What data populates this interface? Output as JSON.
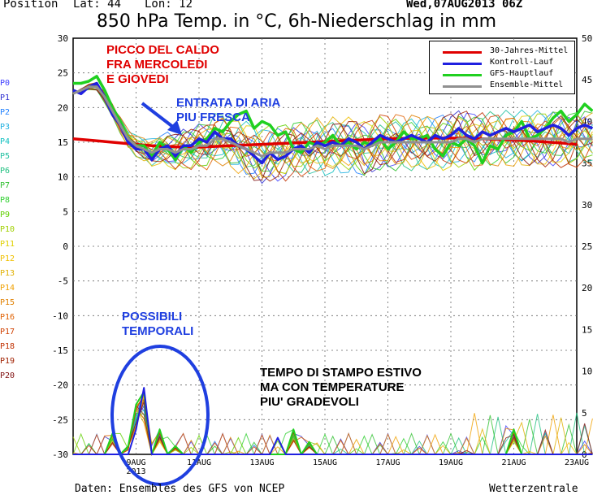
{
  "header": {
    "position": "Position",
    "lat": "Lat: 44",
    "lon": "Lon: 12",
    "date": "Wed,07AUG2013 06Z",
    "title": "850 hPa Temp. in °C, 6h-Niederschlag in mm"
  },
  "footer": {
    "source": "Daten: Ensembles des GFS von NCEP",
    "brand": "Wetterzentrale"
  },
  "members": [
    "P0",
    "P1",
    "P2",
    "P3",
    "P4",
    "P5",
    "P6",
    "P7",
    "P8",
    "P9",
    "P10",
    "P11",
    "P12",
    "P13",
    "P14",
    "P15",
    "P16",
    "P17",
    "P18",
    "P19",
    "P20"
  ],
  "member_colors": [
    "#4040ff",
    "#3030d0",
    "#2080ff",
    "#20b0e0",
    "#10c0c0",
    "#20c0a0",
    "#20c080",
    "#30c030",
    "#30d030",
    "#60d000",
    "#a0d000",
    "#e0d000",
    "#f0c000",
    "#e0b000",
    "#f0a000",
    "#e08000",
    "#e06000",
    "#d04000",
    "#c03000",
    "#a02000",
    "#801010"
  ],
  "legend": [
    {
      "label": "30-Jahres-Mittel",
      "color": "#e00000"
    },
    {
      "label": "Kontroll-Lauf",
      "color": "#2020e0"
    },
    {
      "label": "GFS-Hauptlauf",
      "color": "#20d020"
    },
    {
      "label": "Ensemble-Mittel",
      "color": "#909090"
    }
  ],
  "annotations": {
    "heat_peak": [
      "PICCO DEL CALDO",
      "FRA MERCOLEDI",
      "E GIOVEDI"
    ],
    "cooler_air": [
      "ENTRATA DI ARIA",
      "PIU FRESCA"
    ],
    "storms": [
      "POSSIBILI",
      "TEMPORALI"
    ],
    "summer": [
      "TEMPO DI STAMPO ESTIVO",
      "MA CON TEMPERATURE",
      "PIU' GRADEVOLI"
    ]
  },
  "colors": {
    "annotation_red": "#e00000",
    "annotation_blue": "#1f3fe0",
    "annotation_black": "#000000"
  },
  "chart_data": {
    "type": "line",
    "title": "850 hPa Temp. in °C, 6h-Niederschlag in mm",
    "x_tick_labels": [
      "9AUG",
      "11AUG",
      "13AUG",
      "15AUG",
      "17AUG",
      "19AUG",
      "21AUG",
      "23AUG"
    ],
    "x_sub_label": "2013",
    "x_range_days": [
      0,
      16
    ],
    "x_tick_days": [
      2,
      4,
      6,
      8,
      10,
      12,
      14,
      16
    ],
    "y_left_label": "°C",
    "y_left_range": [
      -30,
      30
    ],
    "y_left_ticks": [
      30,
      25,
      20,
      15,
      10,
      5,
      0,
      -5,
      -10,
      -15,
      -20,
      -25,
      -30
    ],
    "y_right_range": [
      0,
      50
    ],
    "y_right_ticks": [
      50,
      45,
      40,
      35,
      30,
      25,
      20,
      15,
      10,
      5,
      0
    ],
    "grid": true,
    "series": [
      {
        "name": "30-Jahres-Mittel",
        "color": "#e00000",
        "axis": "left",
        "step_days": 0.5,
        "values": [
          15.5,
          15.3,
          15.1,
          14.9,
          14.7,
          14.5,
          14.4,
          14.3,
          14.3,
          14.4,
          14.5,
          14.6,
          14.7,
          14.8,
          14.9,
          15.0,
          15.1,
          15.2,
          15.3,
          15.4,
          15.5,
          15.55,
          15.6,
          15.6,
          15.6,
          15.55,
          15.5,
          15.4,
          15.3,
          15.2,
          15.05,
          14.9,
          14.7
        ]
      },
      {
        "name": "GFS-Hauptlauf",
        "color": "#20d020",
        "axis": "left",
        "step_days": 0.25,
        "values": [
          23.5,
          23.5,
          23.8,
          24.5,
          22.5,
          20.0,
          18.0,
          15.5,
          14.5,
          14.5,
          13.0,
          15.0,
          14.0,
          12.5,
          14.5,
          13.5,
          15.0,
          15.5,
          17.0,
          16.5,
          18.0,
          19.0,
          19.5,
          17.0,
          18.0,
          17.5,
          16.0,
          16.5,
          14.0,
          13.5,
          15.0,
          14.5,
          15.0,
          16.0,
          14.5,
          15.0,
          14.0,
          15.0,
          14.5,
          15.5,
          14.0,
          15.0,
          16.5,
          15.5,
          15.5,
          16.0,
          14.0,
          13.0,
          15.0,
          14.5,
          15.5,
          14.5,
          12.0,
          14.5,
          14.0,
          16.0,
          16.5,
          18.0,
          15.5,
          16.0,
          17.0,
          18.5,
          19.5,
          18.0,
          19.0,
          20.5,
          19.5
        ]
      },
      {
        "name": "Kontroll-Lauf",
        "color": "#2020e0",
        "axis": "left",
        "step_days": 0.25,
        "values": [
          22.5,
          22.0,
          23.0,
          23.5,
          21.5,
          19.0,
          17.5,
          15.0,
          14.0,
          14.0,
          12.5,
          14.0,
          14.5,
          13.0,
          14.5,
          14.5,
          15.5,
          15.0,
          16.5,
          15.5,
          15.5,
          14.5,
          14.0,
          13.0,
          12.0,
          13.5,
          12.5,
          13.0,
          14.0,
          14.5,
          13.5,
          15.0,
          14.5,
          15.0,
          14.5,
          15.5,
          15.0,
          14.0,
          15.0,
          16.0,
          15.5,
          15.0,
          15.5,
          16.0,
          15.5,
          15.0,
          16.0,
          15.5,
          16.0,
          17.0,
          16.0,
          15.5,
          16.5,
          16.0,
          16.5,
          17.0,
          16.5,
          17.0,
          17.5,
          16.5,
          17.0,
          17.5,
          17.0,
          16.0,
          17.0,
          17.5,
          17.0
        ]
      },
      {
        "name": "Ensemble-Mittel",
        "color": "#909090",
        "axis": "left",
        "step_days": 0.25,
        "values": [
          22.0,
          22.5,
          23.0,
          23.0,
          21.5,
          19.5,
          17.5,
          15.5,
          14.5,
          14.0,
          13.5,
          14.0,
          14.0,
          13.5,
          14.0,
          14.0,
          14.5,
          14.5,
          15.5,
          15.5,
          15.0,
          14.5,
          14.0,
          13.5,
          13.0,
          13.5,
          13.5,
          13.5,
          14.0,
          14.0,
          14.0,
          14.5,
          14.0,
          14.5,
          14.5,
          14.5,
          14.5,
          14.0,
          14.5,
          15.0,
          15.0,
          15.0,
          15.0,
          15.0,
          15.0,
          15.0,
          15.0,
          15.0,
          15.0,
          15.5,
          15.5,
          15.0,
          15.5,
          15.5,
          15.5,
          15.5,
          15.5,
          15.5,
          15.5,
          15.5,
          15.5,
          15.5,
          15.5,
          15.0,
          15.5,
          15.5,
          15.5
        ]
      },
      {
        "name": "GFS-Hauptlauf",
        "color": "#20d020",
        "axis": "right",
        "step_days": 0.25,
        "values": [
          0,
          0,
          0,
          0,
          0,
          2.5,
          0,
          1,
          6,
          7.5,
          0,
          3,
          0,
          1,
          0,
          0,
          0,
          0,
          0,
          0,
          0,
          0,
          0,
          0,
          0,
          0,
          0,
          0,
          3,
          0,
          1.5,
          0,
          0,
          0,
          0,
          0,
          0,
          0,
          0,
          0,
          0,
          0,
          0,
          0,
          0,
          0,
          0,
          0,
          0,
          0,
          0,
          0,
          0,
          0,
          0,
          0,
          3,
          0,
          0,
          0,
          0,
          0,
          0,
          0,
          0,
          0,
          0
        ]
      },
      {
        "name": "Kontroll-Lauf",
        "color": "#2020e0",
        "axis": "right",
        "step_days": 0.25,
        "values": [
          0,
          0,
          0,
          0,
          0,
          0,
          0,
          0,
          3,
          8,
          0,
          0,
          0,
          0,
          0,
          0,
          0,
          0,
          0,
          0,
          0,
          0,
          0,
          0,
          0,
          0,
          2,
          0,
          0,
          0,
          0,
          0,
          0,
          0,
          0,
          0,
          0,
          0,
          0,
          0,
          0,
          0,
          0,
          0,
          0,
          0,
          0,
          0,
          0,
          0,
          0,
          0,
          0,
          0,
          0,
          0,
          0,
          0,
          0,
          0,
          0,
          0,
          0,
          0,
          0,
          0,
          0
        ]
      }
    ]
  }
}
